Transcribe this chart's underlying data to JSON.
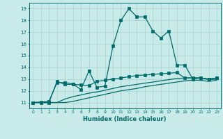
{
  "title": "",
  "xlabel": "Humidex (Indice chaleur)",
  "background_color": "#c8eae8",
  "grid_color": "#b0d8d4",
  "line_color": "#006b6b",
  "xlim": [
    -0.5,
    23.5
  ],
  "ylim": [
    10.5,
    19.5
  ],
  "xticks": [
    0,
    1,
    2,
    3,
    4,
    5,
    6,
    7,
    8,
    9,
    10,
    11,
    12,
    13,
    14,
    15,
    16,
    17,
    18,
    19,
    20,
    21,
    22,
    23
  ],
  "yticks": [
    11,
    12,
    13,
    14,
    15,
    16,
    17,
    18,
    19
  ],
  "line1_x": [
    0,
    1,
    2,
    3,
    4,
    5,
    6,
    7,
    8,
    9,
    10,
    11,
    12,
    13,
    14,
    15,
    16,
    17,
    18,
    19,
    20,
    21,
    22,
    23
  ],
  "line1_y": [
    11.0,
    11.05,
    11.1,
    12.7,
    12.7,
    12.6,
    12.1,
    13.7,
    12.3,
    12.4,
    15.8,
    18.0,
    19.0,
    18.3,
    18.3,
    17.1,
    16.5,
    17.1,
    14.2,
    14.2,
    13.0,
    13.1,
    13.0,
    13.1
  ],
  "line2_x": [
    0,
    1,
    2,
    3,
    4,
    5,
    6,
    7,
    8,
    9,
    10,
    11,
    12,
    13,
    14,
    15,
    16,
    17,
    18,
    19,
    20,
    21,
    22,
    23
  ],
  "line2_y": [
    11.0,
    11.0,
    11.0,
    12.8,
    12.55,
    12.55,
    12.5,
    12.45,
    12.8,
    12.9,
    13.0,
    13.1,
    13.2,
    13.3,
    13.35,
    13.4,
    13.45,
    13.5,
    13.55,
    13.1,
    13.1,
    13.1,
    13.0,
    13.1
  ],
  "line3_x": [
    0,
    1,
    2,
    3,
    4,
    5,
    6,
    7,
    8,
    9,
    10,
    11,
    12,
    13,
    14,
    15,
    16,
    17,
    18,
    19,
    20,
    21,
    22,
    23
  ],
  "line3_y": [
    11.0,
    11.0,
    11.0,
    11.0,
    11.3,
    11.5,
    11.65,
    11.8,
    11.9,
    12.05,
    12.2,
    12.35,
    12.45,
    12.55,
    12.65,
    12.75,
    12.85,
    12.95,
    13.05,
    13.1,
    13.1,
    13.1,
    12.95,
    13.0
  ],
  "line4_x": [
    0,
    1,
    2,
    3,
    4,
    5,
    6,
    7,
    8,
    9,
    10,
    11,
    12,
    13,
    14,
    15,
    16,
    17,
    18,
    19,
    20,
    21,
    22,
    23
  ],
  "line4_y": [
    11.0,
    11.0,
    11.0,
    11.0,
    11.0,
    11.1,
    11.25,
    11.4,
    11.55,
    11.7,
    11.85,
    12.0,
    12.1,
    12.2,
    12.35,
    12.45,
    12.55,
    12.65,
    12.75,
    12.85,
    12.9,
    12.9,
    12.8,
    12.9
  ]
}
